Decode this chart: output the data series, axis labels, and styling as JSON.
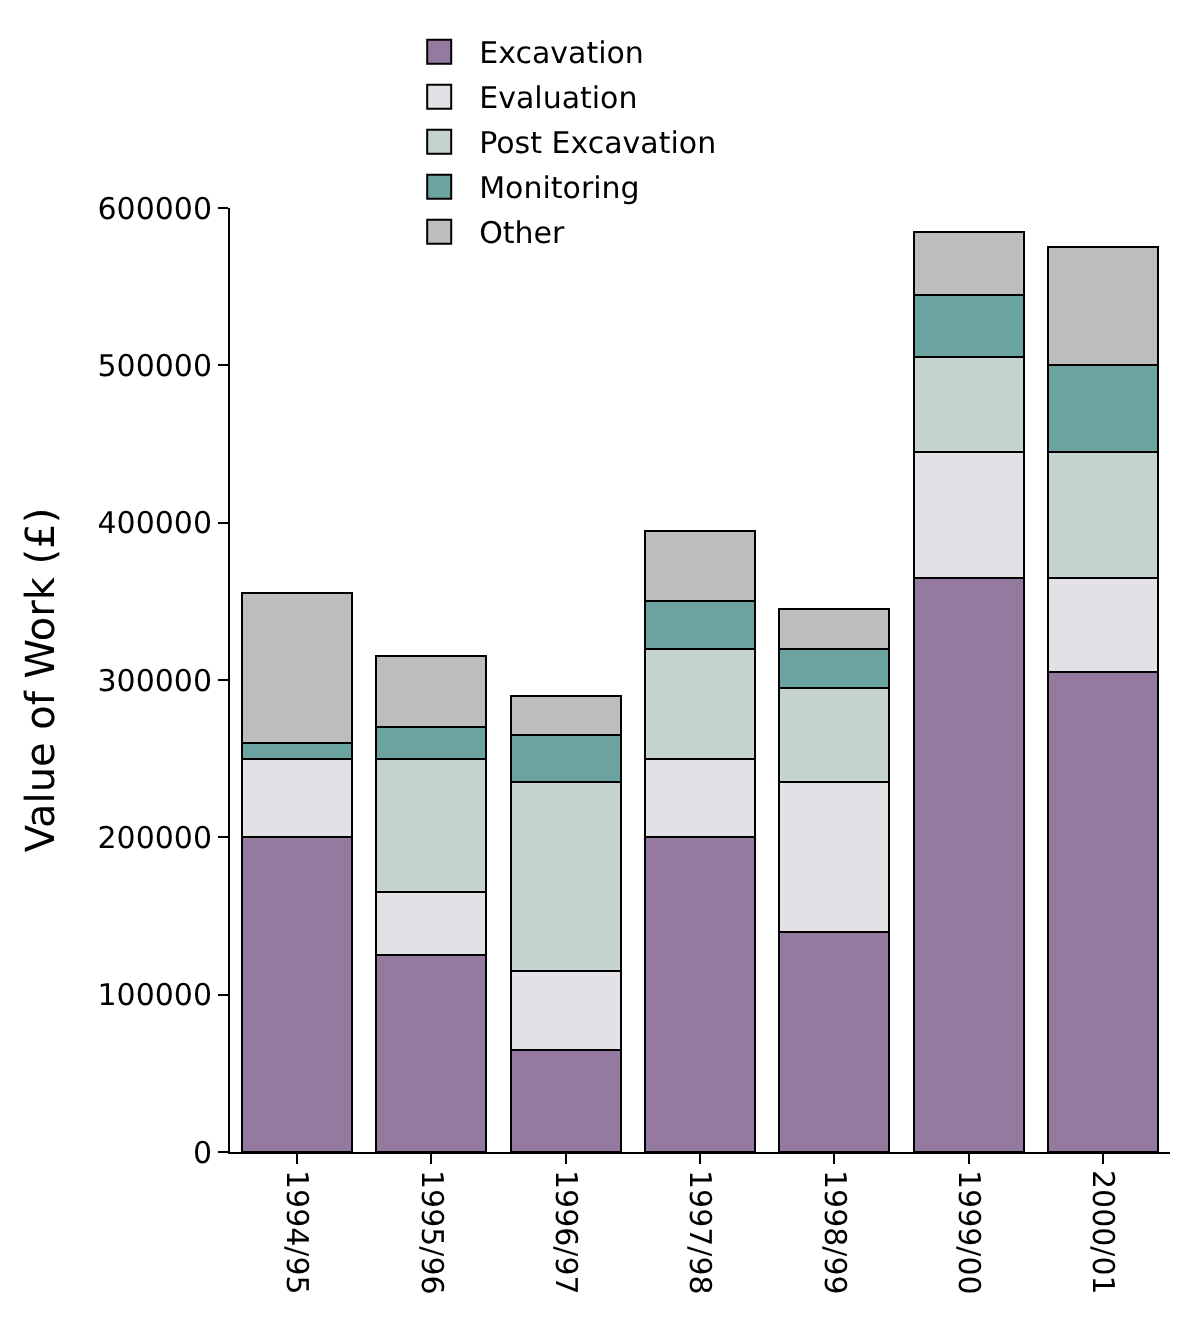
{
  "chart_data": {
    "type": "bar",
    "stacked": true,
    "ylabel": "Value of Work (£)",
    "categories": [
      "1994/95",
      "1995/96",
      "1996/97",
      "1997/98",
      "1998/99",
      "1999/00",
      "2000/01"
    ],
    "series": [
      {
        "name": "Excavation",
        "color": "#957aa0",
        "values": [
          200000,
          125000,
          65000,
          200000,
          140000,
          365000,
          305000
        ]
      },
      {
        "name": "Evaluation",
        "color": "#e3e0e6",
        "values": [
          50000,
          40000,
          50000,
          50000,
          95000,
          80000,
          60000
        ]
      },
      {
        "name": "Post Excavation",
        "color": "#c5d4d0",
        "values": [
          0,
          85000,
          120000,
          70000,
          60000,
          60000,
          80000
        ]
      },
      {
        "name": "Monitoring",
        "color": "#6aa3a0",
        "values": [
          10000,
          20000,
          30000,
          30000,
          25000,
          40000,
          55000
        ]
      },
      {
        "name": "Other",
        "color": "#bdbdbd",
        "values": [
          95000,
          45000,
          25000,
          45000,
          25000,
          40000,
          75000
        ]
      }
    ],
    "ylim": [
      0,
      600000
    ],
    "yticks": [
      0,
      100000,
      200000,
      300000,
      400000,
      500000,
      600000
    ],
    "grid": false,
    "legend": "top"
  }
}
